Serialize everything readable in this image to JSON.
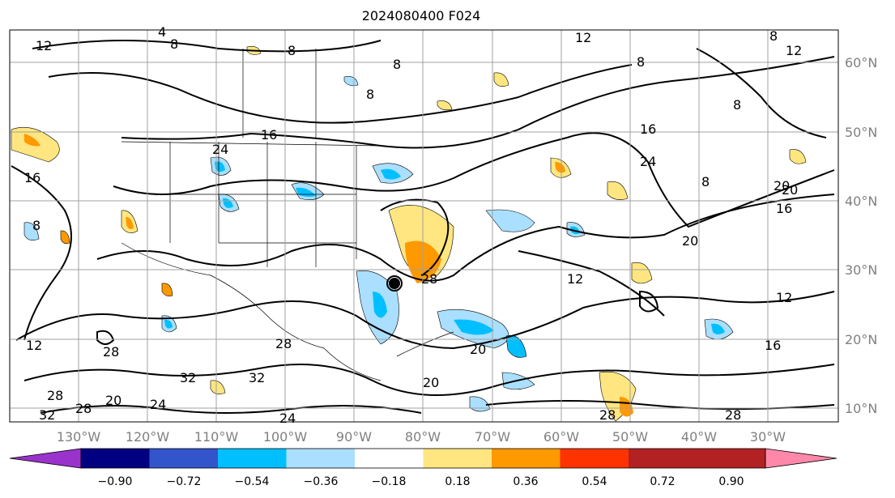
{
  "title": "2024080400 F024",
  "map": {
    "lon_ticks": [
      "130°W",
      "120°W",
      "110°W",
      "100°W",
      "90°W",
      "80°W",
      "70°W",
      "60°W",
      "50°W",
      "40°W",
      "30°W"
    ],
    "lat_ticks": [
      "60°N",
      "50°N",
      "40°N",
      "30°N",
      "20°N",
      "10°N"
    ],
    "contour_labels": [
      "12",
      "4",
      "8",
      "8",
      "8",
      "8",
      "12",
      "8",
      "8",
      "16",
      "24",
      "16",
      "24",
      "8",
      "20",
      "8",
      "16",
      "8",
      "12",
      "12",
      "28",
      "12",
      "16",
      "28",
      "32",
      "32",
      "28",
      "20",
      "24",
      "28",
      "20",
      "20",
      "28",
      "24",
      "20",
      "28",
      "28",
      "32",
      "20",
      "12",
      "16"
    ]
  },
  "colorbar": {
    "ticks": [
      "−0.90",
      "−0.72",
      "−0.54",
      "−0.36",
      "−0.18",
      "0.18",
      "0.36",
      "0.54",
      "0.72",
      "0.90"
    ],
    "colors": [
      "#9933cc",
      "#000080",
      "#3355cc",
      "#00bfff",
      "#aadfff",
      "#ffffff",
      "#ffe680",
      "#ff9900",
      "#ff3300",
      "#b22222",
      "#ff88aa"
    ]
  }
}
